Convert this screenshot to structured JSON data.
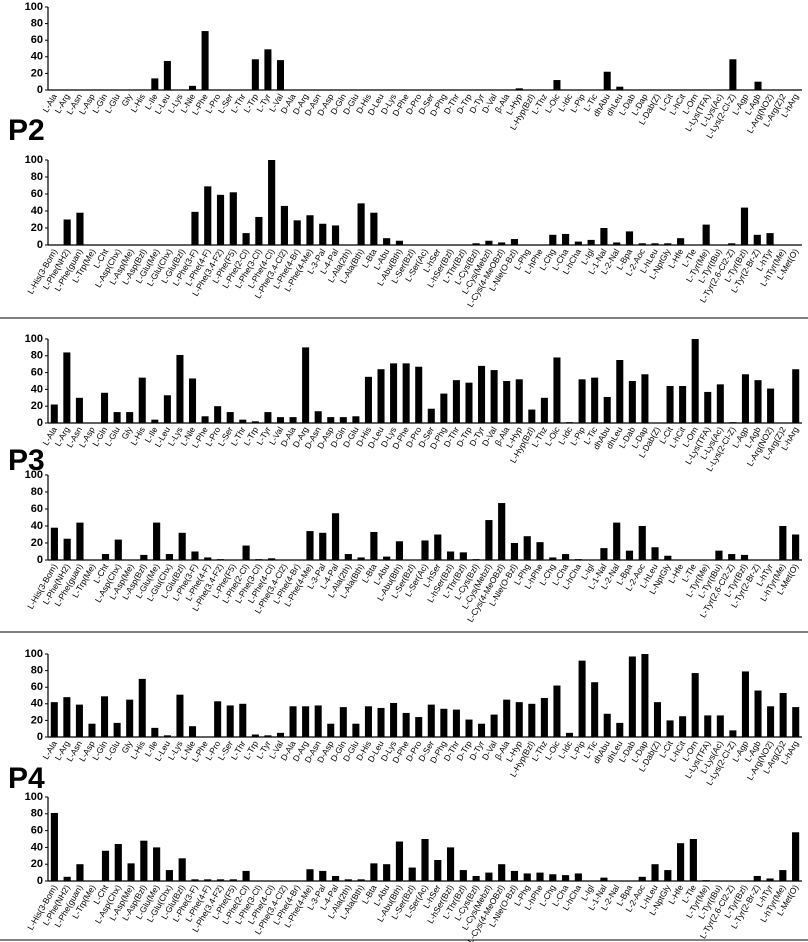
{
  "panel_labels": [
    "P2",
    "P3",
    "P4"
  ],
  "chart_data": [
    {
      "type": "bar",
      "color": "#000000",
      "grid": false,
      "ylim": [
        0,
        100
      ],
      "yticks": [
        0,
        20,
        40,
        60,
        80,
        100
      ],
      "categories": [
        "L-Ala",
        "L-Arg",
        "L-Asn",
        "L-Asp",
        "L-Gln",
        "L-Glu",
        "Gly",
        "L-His",
        "L-Ile",
        "L-Leu",
        "L-Lys",
        "L-Nle",
        "L-Phe",
        "L-Pro",
        "L-Ser",
        "L-Thr",
        "L-Trp",
        "L-Tyr",
        "L-Val",
        "D-Ala",
        "D-Arg",
        "D-Asn",
        "D-Asp",
        "D-Gln",
        "D-Glu",
        "D-His",
        "D-Leu",
        "D-Lys",
        "D-Phe",
        "D-Pro",
        "D-Ser",
        "D-Phg",
        "D-Thr",
        "D-Trp",
        "D-Tyr",
        "D-Val",
        "β-Ala",
        "L-Hyp",
        "L-Hyp(Bzl)",
        "L-Thz",
        "L-Oic",
        "L-Idc",
        "L-Pip",
        "L-Tic",
        "dhAbu",
        "dhLeu",
        "L-Dab",
        "L-Dap",
        "L-Dab(Z)",
        "L-Cit",
        "L-hCit",
        "L-Orn",
        "L-Lys(TFA)",
        "L-Lys(Ac)",
        "L-Lys(2-Cl-Z)",
        "L-Agp",
        "L-Agb",
        "L-Arg(NO2)",
        "L-Arg(Z)2",
        "L-hArg"
      ],
      "values": [
        0,
        0,
        0,
        0,
        0,
        0,
        0,
        0,
        14,
        35,
        0,
        5,
        71,
        0,
        0,
        0,
        37,
        49,
        36,
        0,
        0,
        0,
        0,
        0,
        0,
        0,
        0,
        0,
        0,
        0,
        0,
        0,
        0,
        0,
        0,
        0,
        0,
        2,
        0,
        0,
        12,
        0,
        0,
        0,
        22,
        4,
        0,
        0,
        0,
        0,
        0,
        0,
        0,
        0,
        37,
        0,
        10,
        0,
        0,
        0
      ]
    },
    {
      "type": "bar",
      "color": "#000000",
      "grid": false,
      "ylim": [
        0,
        100
      ],
      "yticks": [
        0,
        20,
        40,
        60,
        80,
        100
      ],
      "categories": [
        "L-His(3-Bom)",
        "L-Phe(NH2)",
        "L-Phe(guan)",
        "L-Trp(Me)",
        "L-Cht",
        "L-Asp(Chx)",
        "L-Asp(Me)",
        "L-Asp(Bzl)",
        "L-Glu(Me)",
        "L-Glu(Chx)",
        "L-Glu(Bzl)",
        "L-Phe(3-F)",
        "L-Phe(4-F)",
        "L-Phe(3,4-F2)",
        "L-Phe(F5)",
        "L-Phe(2-Cl)",
        "L-Phe(3-Cl)",
        "L-Phe(4-Cl)",
        "L-Phe(3,4-Cl2)",
        "L-Phe(4-Br)",
        "L-Phe(4-Me)",
        "L-3-Pal",
        "L-4-Pal",
        "L-Ala(2th)",
        "L-Ala(Bth)",
        "L-Bta",
        "L-Abu",
        "L-Abu(Bth)",
        "L-Ser(Bzl)",
        "L-Ser(Ac)",
        "L-hSer",
        "L-hSer(Bzl)",
        "L-Thr(Bzl)",
        "L-Cys(Bzl)",
        "L-Cys(Mebzl)",
        "L-Cys(4-MeOBzl)",
        "L-Nle(O-Bzl)",
        "L-Phg",
        "L-hPhe",
        "L-Chg",
        "L-Cha",
        "L-hCha",
        "L-Igl",
        "L-1-Nal",
        "L-2-Nal",
        "L-Bpa",
        "L-2-Aoc",
        "L-hLeu",
        "L-NptGly",
        "L-Hfe",
        "L-Tle",
        "L-Tyr(Me)",
        "L-Tyr(tBu)",
        "L-Tyr(2,6-Cl2-Z)",
        "L-Tyr(Bzl)",
        "L-Tyr(2-Br-Z)",
        "L-hTyr",
        "L-hTyr(Me)",
        "L-Met(O)"
      ],
      "values": [
        0,
        30,
        38,
        0,
        0,
        0,
        0,
        0,
        0,
        0,
        0,
        39,
        69,
        59,
        62,
        14,
        33,
        100,
        46,
        29,
        35,
        25,
        23,
        0,
        49,
        38,
        8,
        5,
        0,
        0,
        0,
        0,
        0,
        2,
        5,
        3,
        7,
        0,
        0,
        12,
        13,
        4,
        6,
        20,
        3,
        16,
        2,
        2,
        2,
        8,
        0,
        24,
        0,
        2,
        44,
        12,
        14,
        0,
        0
      ]
    },
    {
      "type": "bar",
      "color": "#000000",
      "grid": false,
      "ylim": [
        0,
        100
      ],
      "yticks": [
        0,
        20,
        40,
        60,
        80,
        100
      ],
      "categories": [
        "L-Ala",
        "L-Arg",
        "L-Asn",
        "L-Asp",
        "L-Gln",
        "L-Glu",
        "Gly",
        "L-His",
        "L-Ile",
        "L-Leu",
        "L-Lys",
        "L-Nle",
        "L-Phe",
        "L-Pro",
        "L-Ser",
        "L-Thr",
        "L-Trp",
        "L-Tyr",
        "L-Val",
        "D-Ala",
        "D-Arg",
        "D-Asn",
        "D-Asp",
        "D-Gln",
        "D-Glu",
        "D-His",
        "D-Leu",
        "D-Lys",
        "D-Phe",
        "D-Pro",
        "D-Ser",
        "D-Phg",
        "D-Thr",
        "D-Trp",
        "D-Tyr",
        "D-Val",
        "β-Ala",
        "L-Hyp",
        "L-Hyp(Bzl)",
        "L-Thz",
        "L-Oic",
        "L-Idc",
        "L-Pip",
        "L-Tic",
        "dhAbu",
        "dhLeu",
        "L-Dab",
        "L-Dap",
        "L-Dab(Z)",
        "L-Cit",
        "L-hCit",
        "L-Orn",
        "L-Lys(TFA)",
        "L-Lys(Ac)",
        "L-Lys(2-Cl-Z)",
        "L-Agp",
        "L-Agb",
        "L-Arg(NO2)",
        "L-Arg(Z)2",
        "L-hArg"
      ],
      "values": [
        22,
        84,
        30,
        0,
        36,
        13,
        13,
        54,
        4,
        33,
        81,
        53,
        8,
        20,
        13,
        4,
        2,
        13,
        7,
        7,
        90,
        14,
        7,
        7,
        8,
        55,
        64,
        71,
        71,
        67,
        17,
        35,
        51,
        48,
        68,
        63,
        50,
        52,
        16,
        30,
        78,
        1,
        52,
        54,
        31,
        75,
        50,
        58,
        0,
        44,
        44,
        100,
        37,
        46,
        1,
        58,
        51,
        41,
        0,
        64
      ]
    },
    {
      "type": "bar",
      "color": "#000000",
      "grid": false,
      "ylim": [
        0,
        100
      ],
      "yticks": [
        0,
        20,
        40,
        60,
        80,
        100
      ],
      "categories": [
        "L-His(3-Bom)",
        "L-Phe(NH2)",
        "L-Phe(guan)",
        "L-Trp(Me)",
        "L-Cht",
        "L-Asp(Chx)",
        "L-Asp(Me)",
        "L-Asp(Bzl)",
        "L-Glu(Me)",
        "L-Glu(Chx)",
        "L-Glu(Bzl)",
        "L-Phe(3-F)",
        "L-Phe(4-F)",
        "L-Phe(3,4-F2)",
        "L-Phe(F5)",
        "L-Phe(2-Cl)",
        "L-Phe(3-Cl)",
        "L-Phe(4-Cl)",
        "L-Phe(3,4-Cl2)",
        "L-Phe(4-Br)",
        "L-Phe(4-Me)",
        "L-3-Pal",
        "L-4-Pal",
        "L-Ala(2th)",
        "L-Ala(Bth)",
        "L-Bta",
        "L-Abu",
        "L-Abu(Bth)",
        "L-Ser(Bzl)",
        "L-Ser(Ac)",
        "L-hSer",
        "L-hSer(Bzl)",
        "L-Thr(Bzl)",
        "L-Cys(Bzl)",
        "L-Cys(Mebzl)",
        "L-Cys(4-MeOBzl)",
        "L-Nle(O-Bzl)",
        "L-Phg",
        "L-hPhe",
        "L-Chg",
        "L-Cha",
        "L-hCha",
        "L-Igl",
        "L-1-Nal",
        "L-2-Nal",
        "L-Bpa",
        "L-2-Aoc",
        "L-hLeu",
        "L-NptGly",
        "L-Hfe",
        "L-Tle",
        "L-Tyr(Me)",
        "L-Tyr(tBu)",
        "L-Tyr(2,6-Cl2-Z)",
        "L-Tyr(Bzl)",
        "L-Tyr(2-Br-Z)",
        "L-hTyr",
        "L-hTyr(Me)",
        "L-Met(O)"
      ],
      "values": [
        38,
        25,
        44,
        0,
        7,
        24,
        0,
        6,
        44,
        7,
        32,
        10,
        3,
        1,
        0,
        17,
        1,
        2,
        0,
        0,
        34,
        32,
        55,
        7,
        3,
        33,
        4,
        22,
        0,
        23,
        30,
        10,
        9,
        1,
        47,
        67,
        20,
        28,
        21,
        3,
        7,
        1,
        0,
        14,
        44,
        11,
        40,
        15,
        5,
        0,
        0,
        0,
        11,
        7,
        6,
        0,
        0,
        40,
        30
      ]
    },
    {
      "type": "bar",
      "color": "#000000",
      "grid": false,
      "ylim": [
        0,
        100
      ],
      "yticks": [
        0,
        20,
        40,
        60,
        80,
        100
      ],
      "categories": [
        "L-Ala",
        "L-Arg",
        "L-Asn",
        "L-Asp",
        "L-Gln",
        "L-Glu",
        "Gly",
        "L-His",
        "L-Ile",
        "L-Leu",
        "L-Lys",
        "L-Nle",
        "L-Phe",
        "L-Pro",
        "L-Ser",
        "L-Thr",
        "L-Trp",
        "L-Tyr",
        "L-Val",
        "D-Ala",
        "D-Arg",
        "D-Asn",
        "D-Asp",
        "D-Gln",
        "D-Glu",
        "D-His",
        "D-Leu",
        "D-Lys",
        "D-Phe",
        "D-Pro",
        "D-Ser",
        "D-Phg",
        "D-Thr",
        "D-Trp",
        "D-Tyr",
        "D-Val",
        "β-Ala",
        "L-Hyp",
        "L-Hyp(Bzl)",
        "L-Thz",
        "L-Oic",
        "L-Idc",
        "L-Pip",
        "L-Tic",
        "dhAbu",
        "dhLeu",
        "L-Dab",
        "L-Dap",
        "L-Dab(Z)",
        "L-Cit",
        "L-hCit",
        "L-Orn",
        "L-Lys(TFA)",
        "L-Lys(Ac)",
        "L-Lys(2-Cl-Z)",
        "L-Agp",
        "L-Agb",
        "L-Arg(NO2)",
        "L-Arg(Z)2",
        "L-hArg"
      ],
      "values": [
        42,
        48,
        39,
        16,
        49,
        17,
        45,
        70,
        11,
        2,
        51,
        13,
        0,
        43,
        38,
        40,
        3,
        2,
        5,
        37,
        37,
        38,
        16,
        36,
        16,
        37,
        35,
        41,
        29,
        24,
        39,
        34,
        33,
        21,
        16,
        27,
        45,
        42,
        40,
        47,
        62,
        5,
        92,
        66,
        28,
        17,
        97,
        100,
        42,
        20,
        25,
        77,
        26,
        26,
        8,
        79,
        56,
        37,
        53,
        36
      ]
    },
    {
      "type": "bar",
      "color": "#000000",
      "grid": false,
      "ylim": [
        0,
        100
      ],
      "yticks": [
        0,
        20,
        40,
        60,
        80,
        100
      ],
      "categories": [
        "L-His(3-Bom)",
        "L-Phe(NH2)",
        "L-Phe(guan)",
        "L-Trp(Me)",
        "L-Cht",
        "L-Asp(Chx)",
        "L-Asp(Me)",
        "L-Asp(Bzl)",
        "L-Glu(Me)",
        "L-Glu(Chx)",
        "L-Glu(Bzl)",
        "L-Phe(3-F)",
        "L-Phe(4-F)",
        "L-Phe(3,4-F2)",
        "L-Phe(F5)",
        "L-Phe(2-Cl)",
        "L-Phe(3-Cl)",
        "L-Phe(4-Cl)",
        "L-Phe(3,4-Cl2)",
        "L-Phe(4-Br)",
        "L-Phe(4-Me)",
        "L-3-Pal",
        "L-4-Pal",
        "L-Ala(2th)",
        "L-Ala(Bth)",
        "L-Bta",
        "L-Abu",
        "L-Abu(Bth)",
        "L-Ser(Bzl)",
        "L-Ser(Ac)",
        "L-hSer",
        "L-hSer(Bzl)",
        "L-Thr(Bzl)",
        "L-Cys(Bzl)",
        "L-Cys(Mebzl)",
        "L-Cys(4-MeOBzl)",
        "L-Nle(O-Bzl)",
        "L-Phg",
        "L-hPhe",
        "L-Chg",
        "L-Cha",
        "L-hCha",
        "L-Igl",
        "L-1-Nal",
        "L-2-Nal",
        "L-Bpa",
        "L-2-Aoc",
        "L-hLeu",
        "L-NptGly",
        "L-Hfe",
        "L-Tle",
        "L-Tyr(Me)",
        "L-Tyr(tBu)",
        "L-Tyr(2,6-Cl2-Z)",
        "L-Tyr(Bzl)",
        "L-Tyr(2-Br-Z)",
        "L-hTyr",
        "L-hTyr(Me)",
        "L-Met(O)"
      ],
      "values": [
        81,
        5,
        20,
        0,
        36,
        44,
        21,
        48,
        40,
        13,
        27,
        2,
        2,
        2,
        2,
        12,
        0,
        0,
        0,
        0,
        14,
        12,
        6,
        2,
        2,
        21,
        20,
        47,
        16,
        50,
        25,
        40,
        13,
        6,
        10,
        20,
        12,
        9,
        10,
        8,
        7,
        9,
        0,
        4,
        0,
        0,
        5,
        20,
        13,
        45,
        50,
        1,
        0,
        0,
        0,
        6,
        3,
        13,
        58
      ]
    }
  ]
}
